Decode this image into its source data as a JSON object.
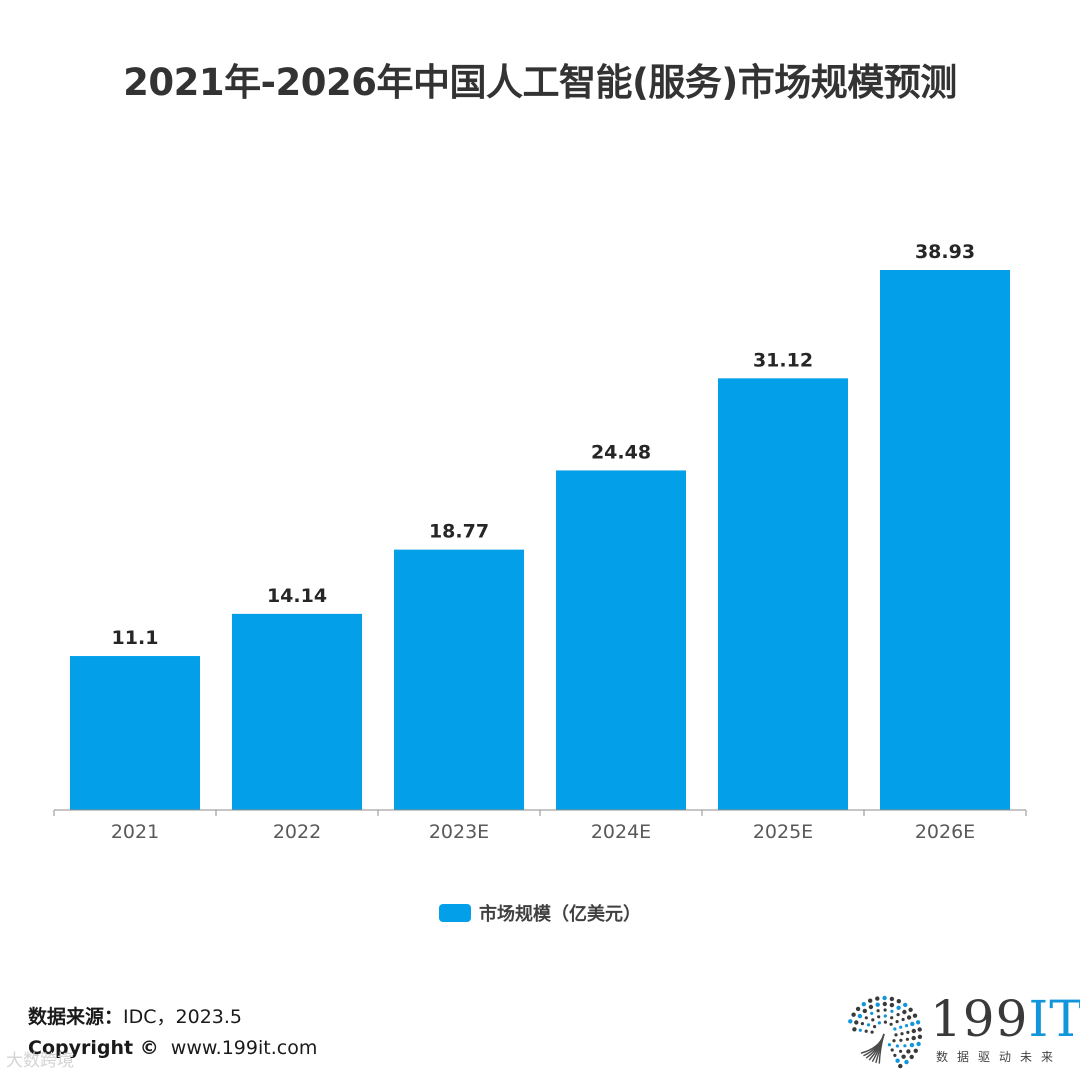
{
  "title": "2021年-2026年中国人工智能(服务)市场规模预测",
  "legend": {
    "label": "市场规模（亿美元）",
    "color": "#039fe8"
  },
  "source": {
    "label": "数据来源：",
    "value": "IDC，2023.5"
  },
  "copyright": {
    "label": "Copyright ©",
    "value": "www.199it.com"
  },
  "watermark": "大数跨境",
  "logo": {
    "text_num": "199",
    "text_it": "IT",
    "tagline": "数据驱动未来"
  },
  "chart_data": {
    "type": "bar",
    "categories": [
      "2021",
      "2022",
      "2023E",
      "2024E",
      "2025E",
      "2026E"
    ],
    "series": [
      {
        "name": "市场规模（亿美元）",
        "values": [
          11.1,
          14.14,
          18.77,
          24.48,
          31.12,
          38.93
        ],
        "color": "#039fe8"
      }
    ],
    "data_labels": [
      "11.1",
      "14.14",
      "18.77",
      "24.48",
      "31.12",
      "38.93"
    ],
    "ylim": [
      0,
      45
    ],
    "grid": false,
    "legend_position": "bottom"
  }
}
